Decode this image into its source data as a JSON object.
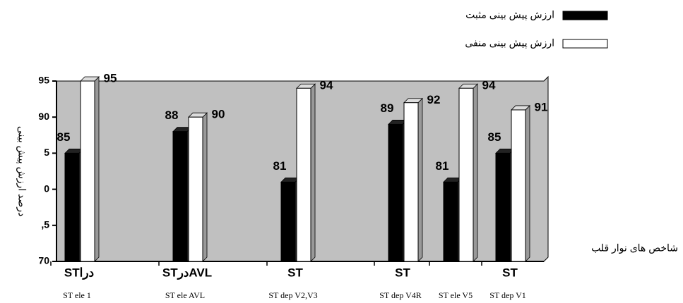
{
  "chart_data": {
    "type": "bar",
    "y_label": "درصد ارزش پیش بینی",
    "x_label": "شاخص های نوار قلب",
    "categories": [
      "STدرا",
      "STدرAVL",
      "ST",
      "ST",
      null,
      "ST"
    ],
    "category_sublabels": [
      "ST ele 1",
      "ST ele AVL",
      "ST dep V2,V3",
      "ST dep V4R",
      "ST ele V5",
      "ST dep V1"
    ],
    "series": [
      {
        "name": "ارزش پیش بینی مثبت",
        "color": "#000000",
        "values": [
          85,
          88,
          81,
          89,
          81,
          85
        ]
      },
      {
        "name": "ارزش پیش بینی منفی",
        "color": "#ffffff",
        "values": [
          95,
          90,
          94,
          92,
          94,
          91
        ]
      }
    ],
    "ylim": [
      70,
      95
    ],
    "yticks": [
      {
        "value": 70,
        "label": "70"
      },
      {
        "value": 75,
        "label": ",5"
      },
      {
        "value": 80,
        "label": "0"
      },
      {
        "value": 85,
        "label": "5"
      },
      90,
      95
    ],
    "plot_background": "#c0c0c0",
    "legend_position": "top-right"
  }
}
